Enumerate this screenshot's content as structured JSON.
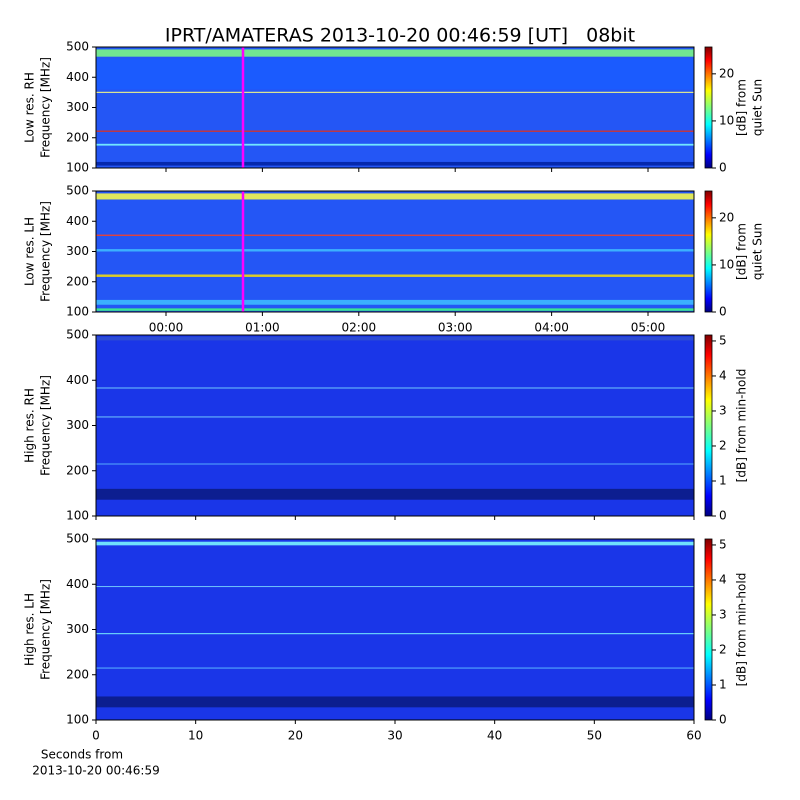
{
  "title": "IPRT/AMATERAS 2013-10-20 00:46:59 [UT]   08bit",
  "chart_data": [
    {
      "type": "heatmap",
      "ylabel": [
        "Low res. RH",
        "Frequency [MHz]"
      ],
      "xlim": [
        -0.726,
        5.477
      ],
      "xticks": [
        0,
        1,
        2,
        3,
        4,
        5
      ],
      "ylim": [
        100,
        500
      ],
      "yticks": [
        100,
        200,
        300,
        400,
        500
      ],
      "clim": [
        0,
        25.7
      ],
      "cticks": [
        0,
        10,
        20
      ],
      "clabel": [
        "[dB] from",
        "quiet Sun"
      ]
    },
    {
      "type": "heatmap",
      "ylabel": [
        "Low res. LH",
        "Frequency [MHz]"
      ],
      "xlim": [
        -0.726,
        5.477
      ],
      "xticks": [
        {
          "value": 0,
          "label": "00:00"
        },
        {
          "value": 1,
          "label": "01:00"
        },
        {
          "value": 2,
          "label": "02:00"
        },
        {
          "value": 3,
          "label": "03:00"
        },
        {
          "value": 4,
          "label": "04:00"
        },
        {
          "value": 5,
          "label": "05:00"
        }
      ],
      "ylim": [
        100,
        500
      ],
      "yticks": [
        100,
        200,
        300,
        400,
        500
      ],
      "clim": [
        0,
        25.7
      ],
      "cticks": [
        0,
        10,
        20
      ],
      "clabel": [
        "[dB] from",
        "quiet Sun"
      ]
    },
    {
      "type": "heatmap",
      "ylabel": [
        "High res. RH",
        "Frequency [MHz]"
      ],
      "xlim": [
        0,
        60
      ],
      "xticks": [
        0,
        10,
        20,
        30,
        40,
        50,
        60
      ],
      "ylim": [
        100,
        500
      ],
      "yticks": [
        100,
        200,
        300,
        400,
        500
      ],
      "clim": [
        0,
        5.17
      ],
      "cticks": [
        0,
        1,
        2,
        3,
        4,
        5
      ],
      "clabel": [
        "[dB] from min-hold"
      ]
    },
    {
      "type": "heatmap",
      "ylabel": [
        "High res. LH",
        "Frequency [MHz]"
      ],
      "xlim": [
        0,
        60
      ],
      "xticks": [
        0,
        10,
        20,
        30,
        40,
        50,
        60
      ],
      "xticks_labeled": true,
      "xlabel": [
        "Seconds from",
        "2013-10-20 00:46:59"
      ],
      "ylim": [
        100,
        500
      ],
      "yticks": [
        100,
        200,
        300,
        400,
        500
      ],
      "clim": [
        0,
        5.17
      ],
      "cticks": [
        0,
        1,
        2,
        3,
        4,
        5
      ],
      "clabel": [
        "[dB] from min-hold"
      ]
    }
  ]
}
